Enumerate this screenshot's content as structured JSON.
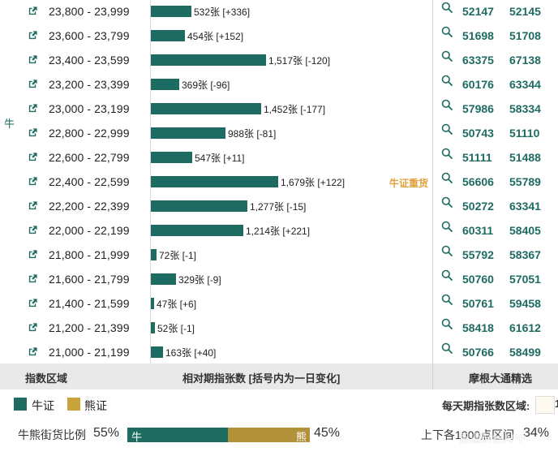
{
  "side_label": "牛",
  "rows": [
    {
      "range": "23,800 - 23,999",
      "bar_label": "532张 [+336]",
      "value": 532,
      "tag": "",
      "c1": "52147",
      "c2": "52145"
    },
    {
      "range": "23,600 - 23,799",
      "bar_label": "454张 [+152]",
      "value": 454,
      "tag": "",
      "c1": "51698",
      "c2": "51708"
    },
    {
      "range": "23,400 - 23,599",
      "bar_label": "1,517张 [-120]",
      "value": 1517,
      "tag": "",
      "c1": "63375",
      "c2": "67138"
    },
    {
      "range": "23,200 - 23,399",
      "bar_label": "369张 [-96]",
      "value": 369,
      "tag": "",
      "c1": "60176",
      "c2": "63344"
    },
    {
      "range": "23,000 - 23,199",
      "bar_label": "1,452张 [-177]",
      "value": 1452,
      "tag": "",
      "c1": "57986",
      "c2": "58334"
    },
    {
      "range": "22,800 - 22,999",
      "bar_label": "988张 [-81]",
      "value": 988,
      "tag": "",
      "c1": "50743",
      "c2": "51110"
    },
    {
      "range": "22,600 - 22,799",
      "bar_label": "547张 [+11]",
      "value": 547,
      "tag": "",
      "c1": "51111",
      "c2": "51488"
    },
    {
      "range": "22,400 - 22,599",
      "bar_label": "1,679张 [+122]",
      "value": 1679,
      "tag": "牛证重货",
      "c1": "56606",
      "c2": "55789"
    },
    {
      "range": "22,200 - 22,399",
      "bar_label": "1,277张 [-15]",
      "value": 1277,
      "tag": "",
      "c1": "50272",
      "c2": "63341"
    },
    {
      "range": "22,000 - 22,199",
      "bar_label": "1,214张 [+221]",
      "value": 1214,
      "tag": "",
      "c1": "60311",
      "c2": "58405"
    },
    {
      "range": "21,800 - 21,999",
      "bar_label": "72张 [-1]",
      "value": 72,
      "tag": "",
      "c1": "55792",
      "c2": "58367"
    },
    {
      "range": "21,600 - 21,799",
      "bar_label": "329张 [-9]",
      "value": 329,
      "tag": "",
      "c1": "50760",
      "c2": "57051"
    },
    {
      "range": "21,400 - 21,599",
      "bar_label": "47张 [+6]",
      "value": 47,
      "tag": "",
      "c1": "50761",
      "c2": "59458"
    },
    {
      "range": "21,200 - 21,399",
      "bar_label": "52张 [-1]",
      "value": 52,
      "tag": "",
      "c1": "58418",
      "c2": "61612"
    },
    {
      "range": "21,000 - 21,199",
      "bar_label": "163张 [+40]",
      "value": 163,
      "tag": "",
      "c1": "50766",
      "c2": "58499"
    }
  ],
  "header": {
    "col1": "指数区域",
    "col2": "相对期指张数 [括号内为一日变化]",
    "col3": "摩根大通精选"
  },
  "legend": {
    "bull": "牛证",
    "bear": "熊证",
    "right_text": "每天期指张数区域:",
    "right_value": "1"
  },
  "ratio": {
    "label": "牛熊街货比例",
    "bull_pct": "55%",
    "bull_fraction": 0.55,
    "bull_bar_text": "牛",
    "bear_bar_text": "熊",
    "bear_pct": "45%",
    "right_label": "上下各1000点区间",
    "right_pct": "34%"
  },
  "watermark": "智通财经APP",
  "colors": {
    "bull": "#1e6b61",
    "bear": "#c9a23a",
    "tag": "#e0a13a"
  }
}
